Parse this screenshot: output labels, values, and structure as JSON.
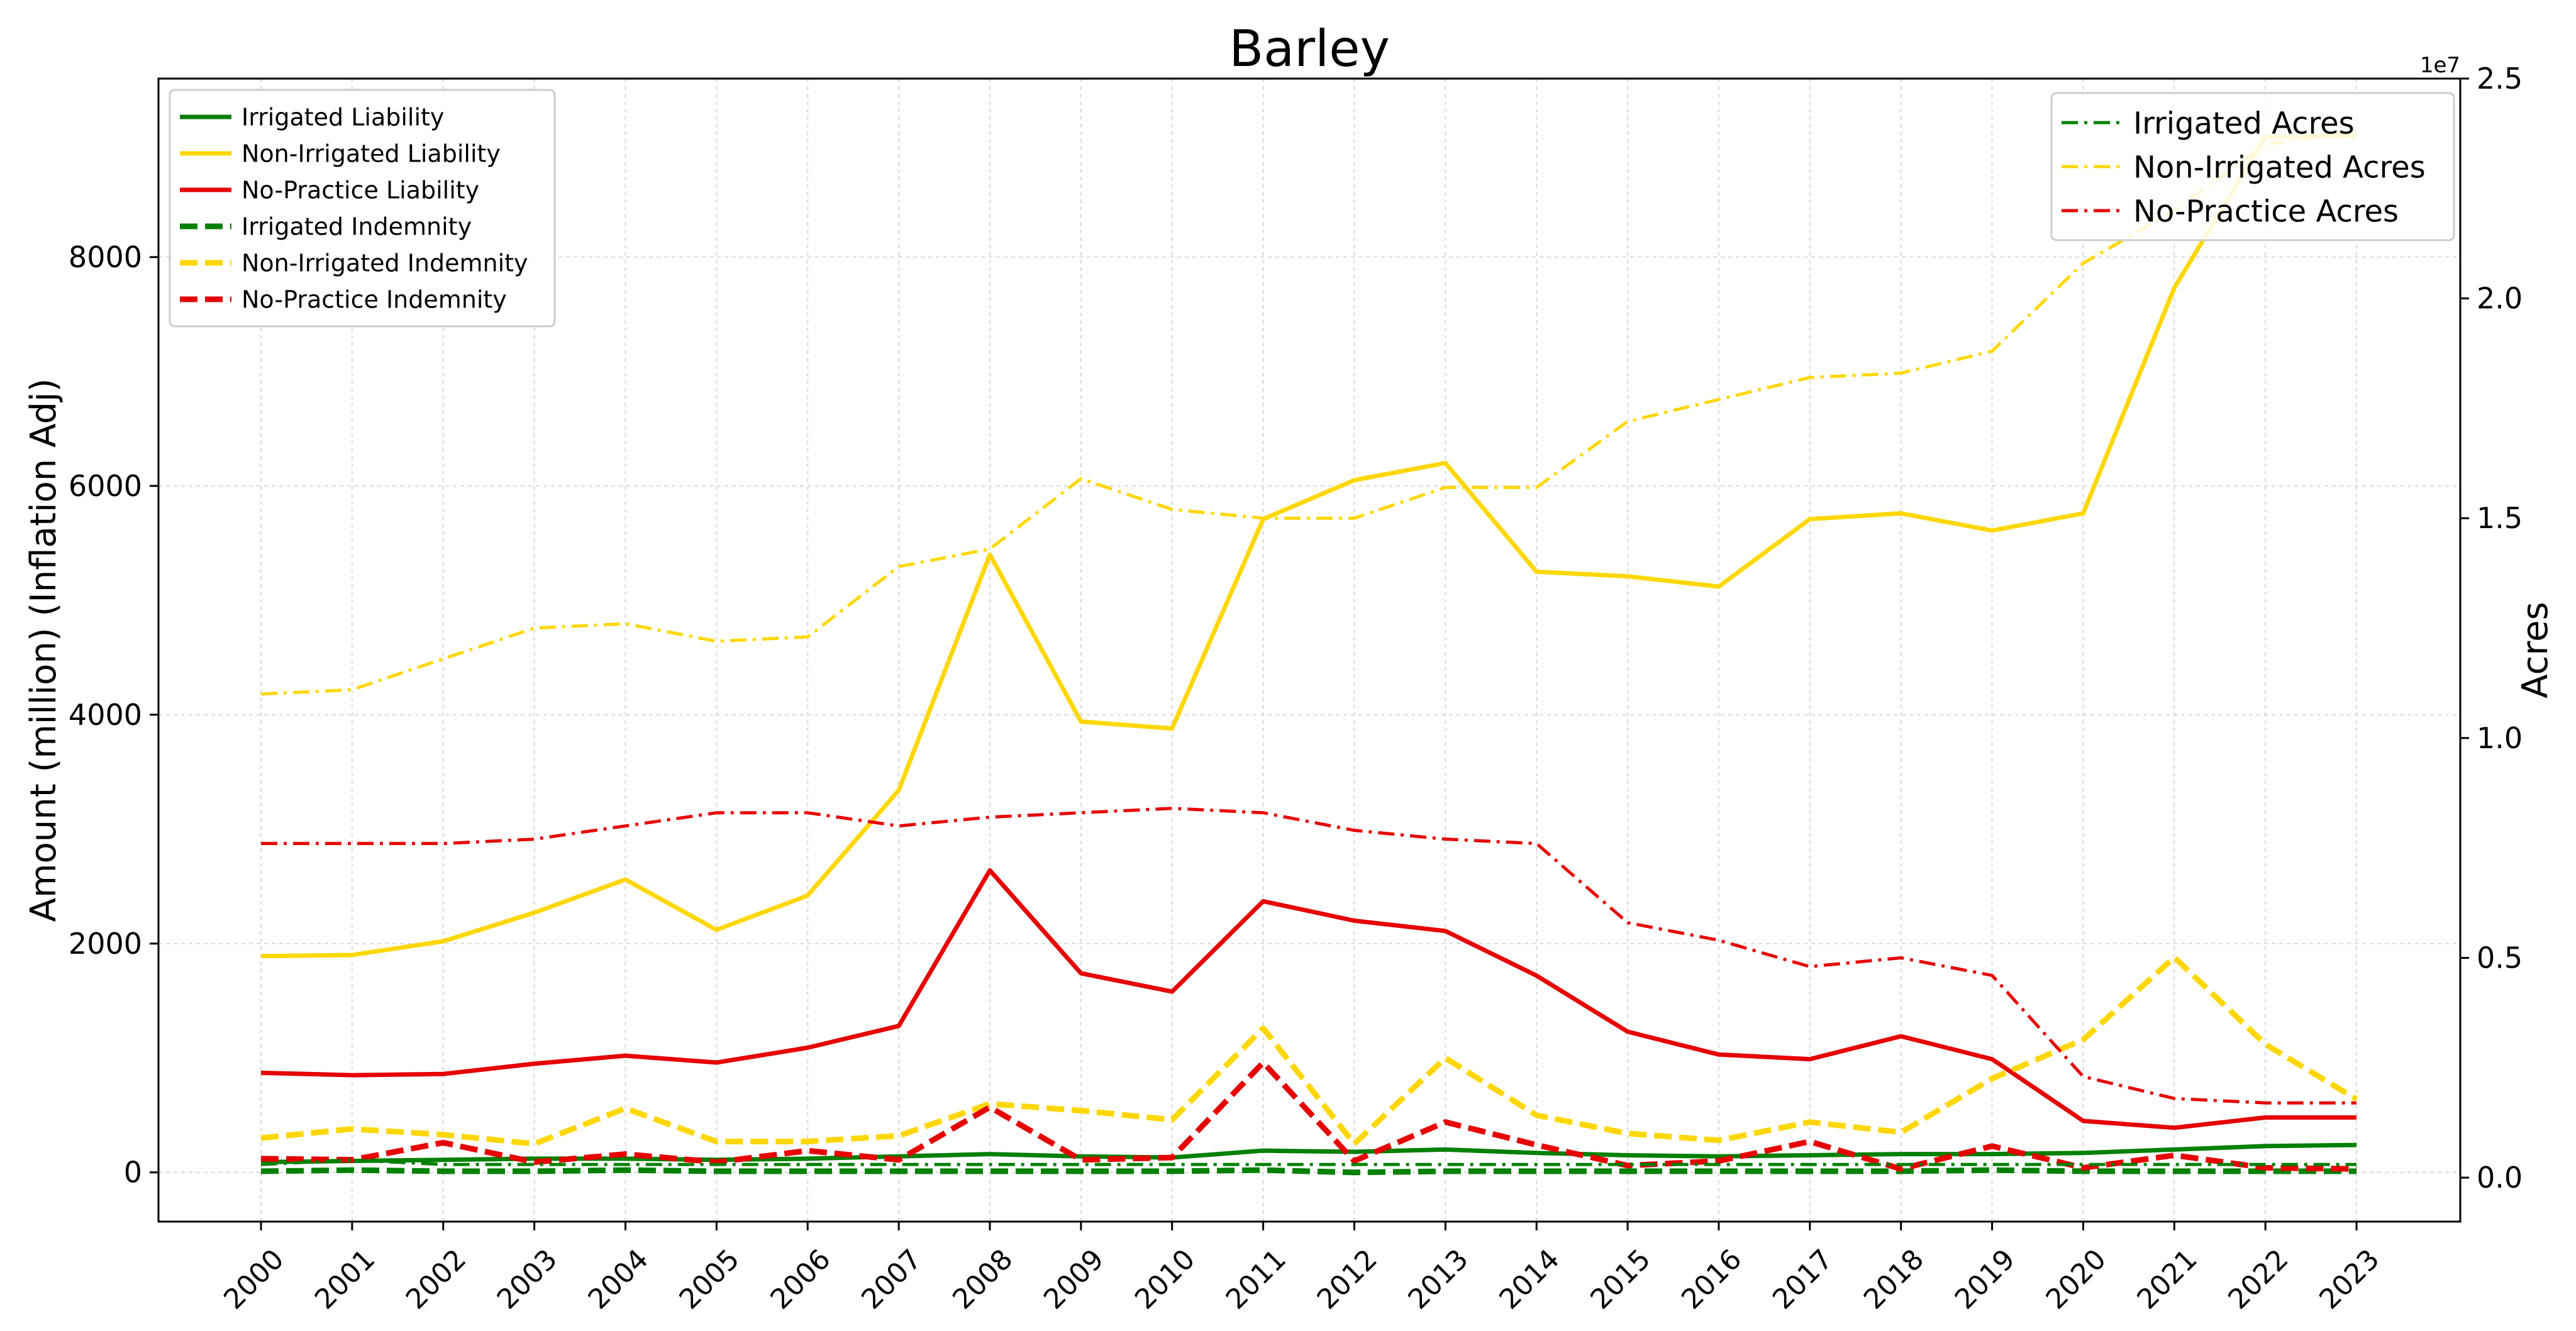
{
  "chart_data": {
    "type": "line",
    "title": "Barley",
    "xlabel": "",
    "ylabel_left": "Amount (million) (Inflation Adj)",
    "ylabel_right": "Acres",
    "right_axis_offset": "1e7",
    "categories": [
      "2000",
      "2001",
      "2002",
      "2003",
      "2004",
      "2005",
      "2006",
      "2007",
      "2008",
      "2009",
      "2010",
      "2011",
      "2012",
      "2013",
      "2014",
      "2015",
      "2016",
      "2017",
      "2018",
      "2019",
      "2020",
      "2021",
      "2022",
      "2023"
    ],
    "y_left": {
      "lim": [
        -430,
        9560
      ],
      "ticks": [
        0,
        2000,
        4000,
        6000,
        8000
      ]
    },
    "y_right": {
      "lim": [
        -0.1,
        2.5
      ],
      "ticks": [
        0.0,
        0.5,
        1.0,
        1.5,
        2.0,
        2.5
      ],
      "tick_labels": [
        "0.0",
        "0.5",
        "1.0",
        "1.5",
        "2.0",
        "2.5"
      ]
    },
    "grid": true,
    "legend_left_placement": "top-left",
    "legend_right_placement": "top-right",
    "series": [
      {
        "name": "Irrigated Liability",
        "axis": "left",
        "style": "solid",
        "color": "#008000",
        "values": [
          90,
          100,
          110,
          120,
          120,
          110,
          120,
          140,
          160,
          140,
          130,
          190,
          180,
          200,
          170,
          150,
          140,
          150,
          160,
          160,
          170,
          200,
          230,
          240
        ]
      },
      {
        "name": "Non-Irrigated Liability",
        "axis": "left",
        "style": "solid",
        "color": "#FFD700",
        "values": [
          1890,
          1900,
          2020,
          2270,
          2560,
          2120,
          2420,
          3340,
          5400,
          3940,
          3880,
          5710,
          6050,
          6200,
          5250,
          5210,
          5120,
          5710,
          5760,
          5610,
          5760,
          7730,
          9050,
          9060
        ]
      },
      {
        "name": "No-Practice Liability",
        "axis": "left",
        "style": "solid",
        "color": "#E60000",
        "values": [
          870,
          850,
          860,
          950,
          1020,
          960,
          1090,
          1280,
          2640,
          1740,
          1580,
          2370,
          2200,
          2110,
          1720,
          1230,
          1030,
          990,
          1190,
          990,
          450,
          390,
          480,
          480
        ]
      },
      {
        "name": "Irrigated Indemnity",
        "axis": "left",
        "style": "dashed",
        "color": "#008000",
        "values": [
          10,
          20,
          10,
          10,
          20,
          10,
          10,
          10,
          10,
          10,
          10,
          20,
          0,
          10,
          10,
          10,
          10,
          10,
          10,
          20,
          10,
          10,
          10,
          10
        ]
      },
      {
        "name": "Non-Irrigated Indemnity",
        "axis": "left",
        "style": "dashed",
        "color": "#FFD700",
        "values": [
          300,
          380,
          330,
          250,
          560,
          270,
          270,
          320,
          600,
          540,
          460,
          1260,
          250,
          1000,
          500,
          340,
          280,
          440,
          350,
          820,
          1160,
          1880,
          1120,
          640
        ]
      },
      {
        "name": "No-Practice Indemnity",
        "axis": "left",
        "style": "dashed",
        "color": "#E60000",
        "values": [
          120,
          110,
          260,
          90,
          160,
          90,
          190,
          110,
          570,
          110,
          130,
          960,
          100,
          440,
          240,
          60,
          100,
          270,
          30,
          230,
          40,
          150,
          40,
          30
        ]
      },
      {
        "name": "Irrigated Acres",
        "axis": "right",
        "style": "dashdot",
        "color": "#008000",
        "values": [
          0.03,
          0.04,
          0.03,
          0.03,
          0.03,
          0.03,
          0.03,
          0.03,
          0.03,
          0.03,
          0.03,
          0.03,
          0.03,
          0.03,
          0.03,
          0.03,
          0.03,
          0.03,
          0.03,
          0.03,
          0.03,
          0.03,
          0.03,
          0.03
        ]
      },
      {
        "name": "Non-Irrigated Acres",
        "axis": "right",
        "style": "dashdot",
        "color": "#FFD700",
        "values": [
          1.1,
          1.11,
          1.18,
          1.25,
          1.26,
          1.22,
          1.23,
          1.39,
          1.43,
          1.59,
          1.52,
          1.5,
          1.5,
          1.57,
          1.57,
          1.72,
          1.77,
          1.82,
          1.83,
          1.88,
          2.08,
          2.2,
          2.35,
          2.38
        ]
      },
      {
        "name": "No-Practice Acres",
        "axis": "right",
        "style": "dashdot",
        "color": "#E60000",
        "values": [
          0.76,
          0.76,
          0.76,
          0.77,
          0.8,
          0.83,
          0.83,
          0.8,
          0.82,
          0.83,
          0.84,
          0.83,
          0.79,
          0.77,
          0.76,
          0.58,
          0.54,
          0.48,
          0.5,
          0.46,
          0.23,
          0.18,
          0.17,
          0.17
        ]
      }
    ]
  }
}
